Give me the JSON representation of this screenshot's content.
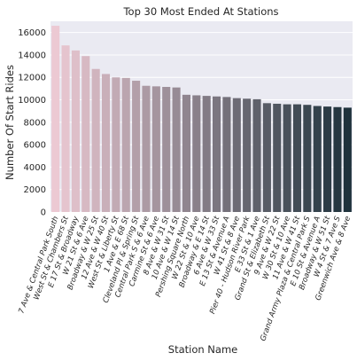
{
  "chart_data": {
    "type": "bar",
    "title": "Top 30 Most Ended At Stations",
    "xlabel": "Station Name",
    "ylabel": "Number Of Start Rides",
    "ylim": [
      0,
      17000
    ],
    "yticks": [
      0,
      2000,
      4000,
      6000,
      8000,
      10000,
      12000,
      14000,
      16000
    ],
    "grid": true,
    "background_color": "#eaeaf2",
    "palette_light": "#ecc9d3",
    "palette_dark": "#1f323c",
    "categories": [
      "7 Ave & Central Park South",
      "West St & Chambers St",
      "E 17 St & Broadway",
      "W 21 St & 6 Ave",
      "Broadway & W 25 St",
      "12 Ave & W 40 St",
      "West St & Liberty St",
      "1 Ave & E 68 St",
      "Cleveland Pl & Spring St",
      "Central Park S & 6 Ave",
      "Carmine St & 6 Ave",
      "8 Ave & W 31 St",
      "10 Ave & W 14 St",
      "Pershing Square North",
      "W 22 St & 10 Ave",
      "Broadway & E 14 St",
      "6 Ave & W 33 St",
      "E 13 St & Avenue A",
      "W 41 St & 8 Ave",
      "Pier 40 - Hudson River Park",
      "E 33 St & 1 Ave",
      "Grand St & Elizabeth St",
      "9 Ave & W 22 St",
      "W 30 St & 10 Ave",
      "11 Ave & W 41 St",
      "Grand Army Plaza & Central Park S",
      "E 10 St & Avenue A",
      "Broadway & W 51 St",
      "W 4 St & 7 Ave S",
      "Greenwich Ave & 8 Ave"
    ],
    "values": [
      16600,
      14850,
      14400,
      13900,
      12750,
      12300,
      12000,
      11950,
      11700,
      11250,
      11200,
      11150,
      11100,
      10450,
      10400,
      10350,
      10300,
      10250,
      10150,
      10100,
      10050,
      9700,
      9650,
      9600,
      9600,
      9550,
      9450,
      9400,
      9350,
      9300
    ]
  }
}
